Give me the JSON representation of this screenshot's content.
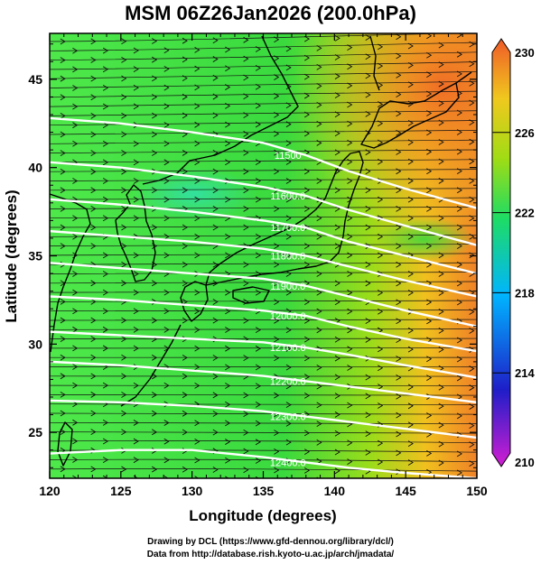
{
  "title": "MSM 06Z26Jan2026 (200.0hPa)",
  "credits": {
    "line1": "Drawing by DCL (https://www.gfd-dennou.org/library/dcl/)",
    "line2": "Data from http://database.rish.kyoto-u.ac.jp/arch/jmadata/"
  },
  "chart_data": {
    "type": "heatmap",
    "xlabel": "Longitude (degrees)",
    "ylabel": "Latitude  (degrees)",
    "xlim": [
      120,
      150
    ],
    "ylim": [
      22.4,
      47.6
    ],
    "x_ticks": [
      120,
      125,
      130,
      135,
      140,
      145,
      150
    ],
    "y_ticks": [
      25,
      30,
      35,
      40,
      45
    ],
    "fill_field": "temperature",
    "contour_field": "geopotential height",
    "vector_field": "wind streamlines",
    "colorbar": {
      "min": 210,
      "max": 230,
      "ticks": [
        210,
        214,
        218,
        222,
        226,
        230
      ],
      "colors": [
        "#d21ed2",
        "#1e1ec8",
        "#00b4ff",
        "#1edc64",
        "#a0dc14",
        "#f0c81e",
        "#f05a28"
      ]
    },
    "contours": [
      {
        "label": "11500",
        "points": [
          [
            120,
            42.8
          ],
          [
            125,
            42.5
          ],
          [
            130,
            42.0
          ],
          [
            135,
            41.4
          ],
          [
            138,
            40.7
          ],
          [
            141,
            39.8
          ],
          [
            145,
            38.8
          ],
          [
            150,
            37.7
          ]
        ]
      },
      {
        "label": "11600.0",
        "points": [
          [
            120,
            40.3
          ],
          [
            125,
            40.0
          ],
          [
            130,
            39.5
          ],
          [
            135,
            38.9
          ],
          [
            138,
            38.4
          ],
          [
            141,
            37.6
          ],
          [
            145,
            36.7
          ],
          [
            150,
            35.6
          ]
        ]
      },
      {
        "label": "11700.0",
        "points": [
          [
            120,
            38.2
          ],
          [
            125,
            37.9
          ],
          [
            130,
            37.5
          ],
          [
            135,
            37.0
          ],
          [
            138,
            36.6
          ],
          [
            141,
            35.8
          ],
          [
            145,
            35.0
          ],
          [
            150,
            34.0
          ]
        ]
      },
      {
        "label": "11800.0",
        "points": [
          [
            120,
            36.4
          ],
          [
            125,
            36.1
          ],
          [
            130,
            35.8
          ],
          [
            135,
            35.4
          ],
          [
            138,
            35.0
          ],
          [
            141,
            34.4
          ],
          [
            145,
            33.6
          ],
          [
            150,
            32.7
          ]
        ]
      },
      {
        "label": "11900.0",
        "points": [
          [
            120,
            34.6
          ],
          [
            125,
            34.3
          ],
          [
            130,
            34.0
          ],
          [
            135,
            33.7
          ],
          [
            138,
            33.3
          ],
          [
            141,
            32.7
          ],
          [
            145,
            31.9
          ],
          [
            150,
            31.0
          ]
        ]
      },
      {
        "label": "12000.0",
        "points": [
          [
            120,
            32.7
          ],
          [
            125,
            32.5
          ],
          [
            130,
            32.2
          ],
          [
            135,
            31.9
          ],
          [
            138,
            31.6
          ],
          [
            141,
            31.0
          ],
          [
            145,
            30.3
          ],
          [
            150,
            29.6
          ]
        ]
      },
      {
        "label": "12100.0",
        "points": [
          [
            120,
            30.7
          ],
          [
            125,
            30.5
          ],
          [
            130,
            30.3
          ],
          [
            135,
            30.1
          ],
          [
            138,
            29.8
          ],
          [
            141,
            29.4
          ],
          [
            145,
            28.8
          ],
          [
            150,
            28.1
          ]
        ]
      },
      {
        "label": "12200.0",
        "points": [
          [
            120,
            29.0
          ],
          [
            125,
            28.8
          ],
          [
            130,
            28.5
          ],
          [
            135,
            28.2
          ],
          [
            138,
            27.9
          ],
          [
            141,
            27.6
          ],
          [
            145,
            27.2
          ],
          [
            150,
            26.7
          ]
        ]
      },
      {
        "label": "12300.0",
        "points": [
          [
            120,
            26.8
          ],
          [
            125,
            26.7
          ],
          [
            130,
            26.5
          ],
          [
            135,
            26.2
          ],
          [
            138,
            25.9
          ],
          [
            141,
            25.6
          ],
          [
            145,
            25.2
          ],
          [
            150,
            24.7
          ]
        ]
      },
      {
        "label": "12400.0",
        "points": [
          [
            120,
            23.8
          ],
          [
            125,
            24.0
          ],
          [
            130,
            24.0
          ],
          [
            135,
            23.6
          ],
          [
            138,
            23.3
          ],
          [
            141,
            23.0
          ],
          [
            145,
            22.7
          ],
          [
            150,
            22.4
          ]
        ]
      }
    ]
  }
}
